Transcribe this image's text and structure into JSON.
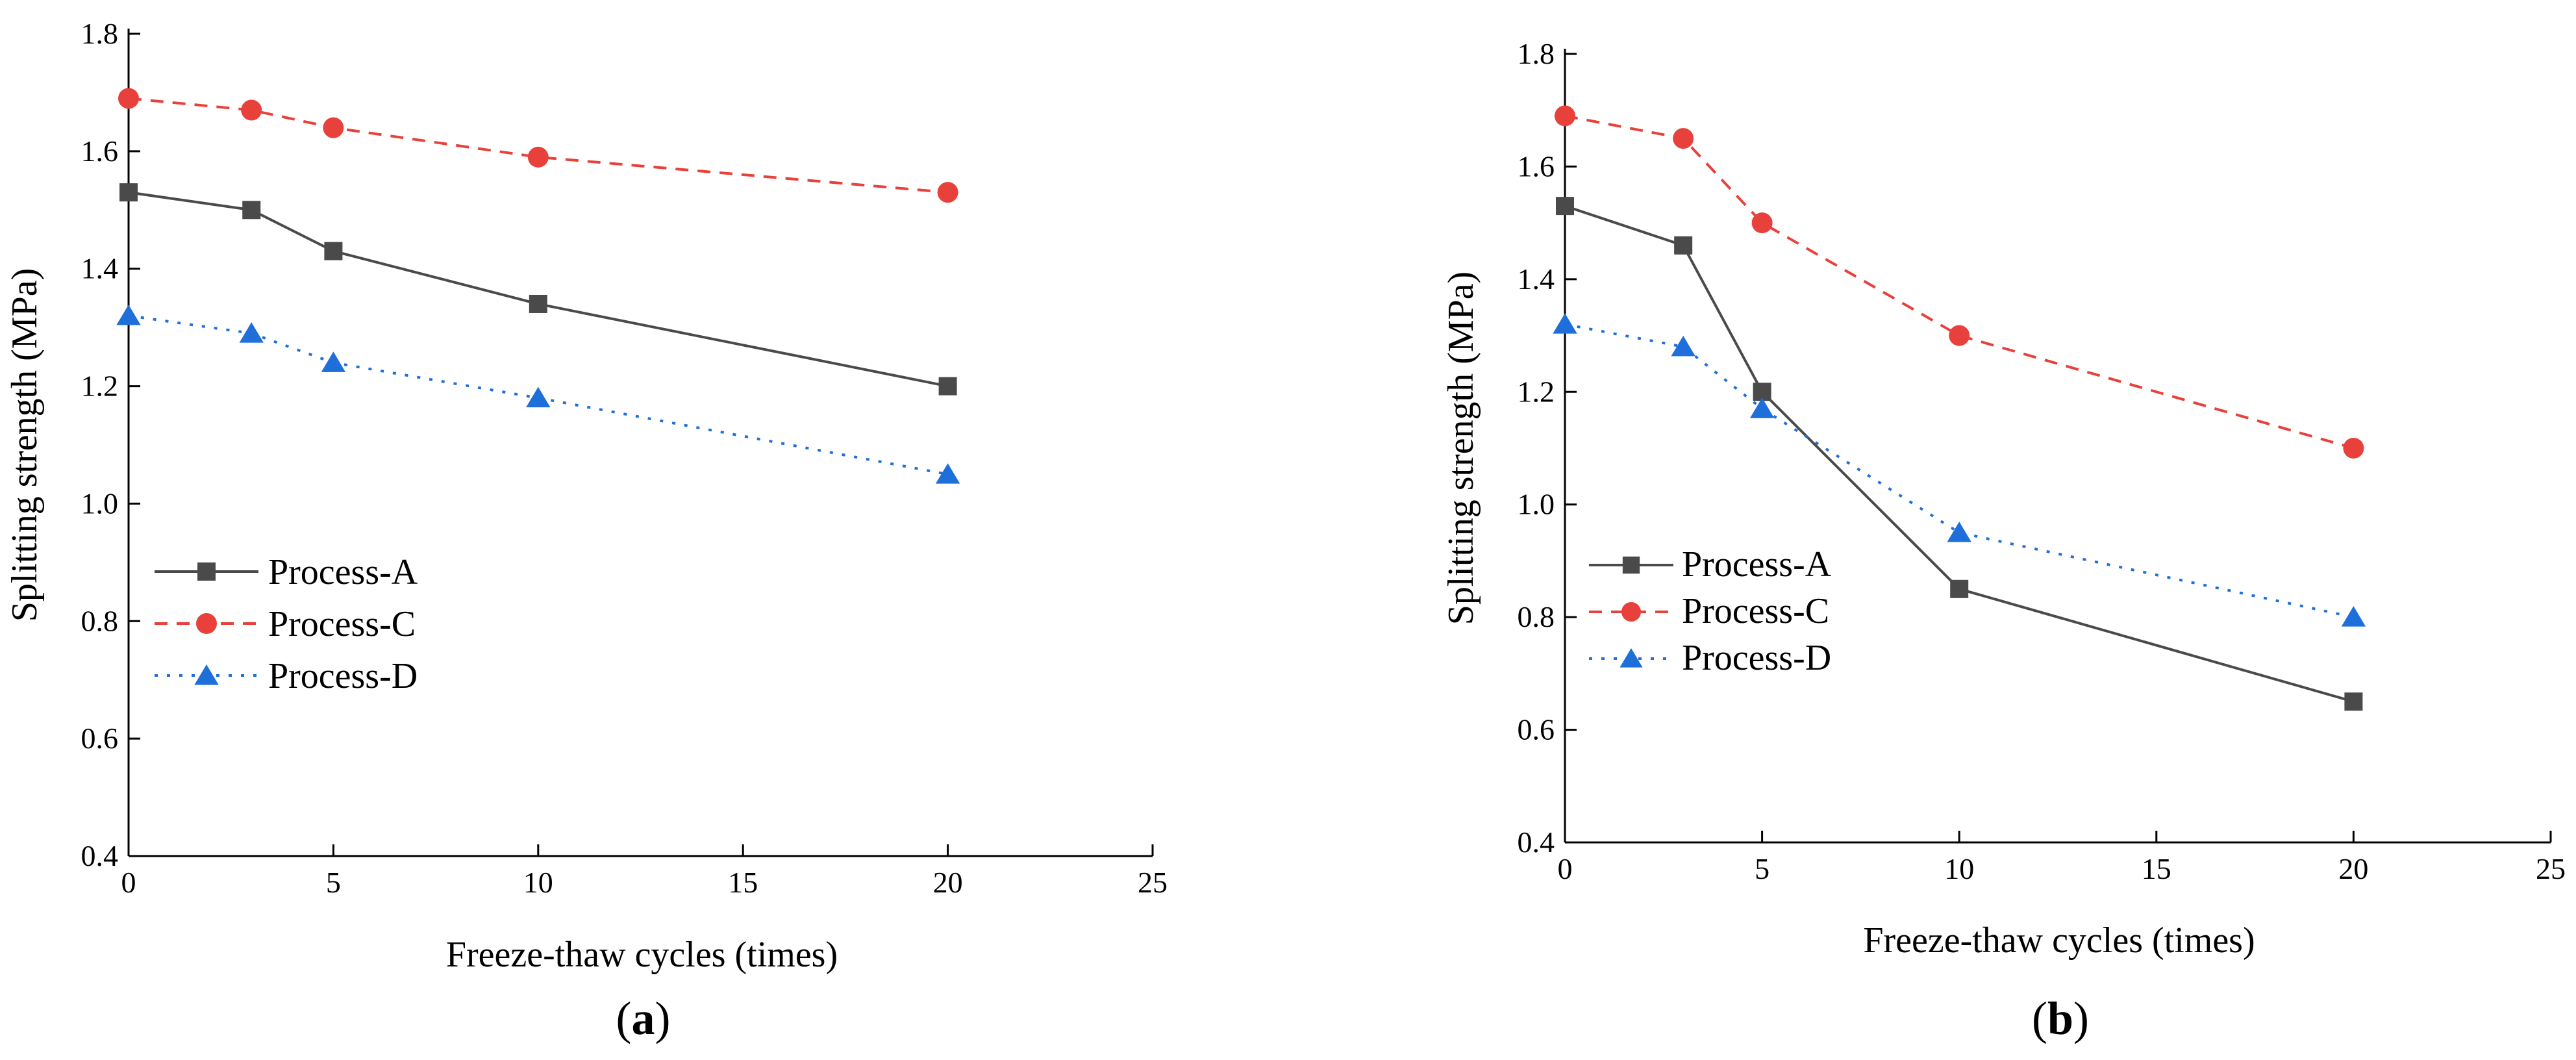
{
  "chart_data": [
    {
      "type": "line",
      "panel": "a",
      "x": [
        0,
        3,
        5,
        10,
        20
      ],
      "xlabel": "Freeze-thaw cycles (times)",
      "ylabel": "Splitting strength (MPa)",
      "xlim": [
        0,
        25
      ],
      "ylim": [
        0.4,
        1.8
      ],
      "xticks": [
        0,
        5,
        10,
        15,
        20,
        25
      ],
      "yticks": [
        0.4,
        0.6,
        0.8,
        1.0,
        1.2,
        1.4,
        1.6,
        1.8
      ],
      "grid": false,
      "legend_position": "center-left",
      "series": [
        {
          "name": "Process-A",
          "values": [
            1.53,
            1.5,
            1.43,
            1.34,
            1.2
          ],
          "color": "#4a4a4a",
          "marker": "square",
          "line": "solid"
        },
        {
          "name": "Process-C",
          "values": [
            1.69,
            1.67,
            1.64,
            1.59,
            1.53
          ],
          "color": "#e8403a",
          "marker": "circle",
          "line": "dashed"
        },
        {
          "name": "Process-D",
          "values": [
            1.32,
            1.29,
            1.24,
            1.18,
            1.05
          ],
          "color": "#1e6fd9",
          "marker": "triangle",
          "line": "dotted"
        }
      ],
      "caption": {
        "open": "(",
        "letter": "a",
        "close": ")"
      }
    },
    {
      "type": "line",
      "panel": "b",
      "x": [
        0,
        3,
        5,
        10,
        20
      ],
      "xlabel": "Freeze-thaw cycles (times)",
      "ylabel": "Splitting strength (MPa)",
      "xlim": [
        0,
        25
      ],
      "ylim": [
        0.4,
        1.8
      ],
      "xticks": [
        0,
        5,
        10,
        15,
        20,
        25
      ],
      "yticks": [
        0.4,
        0.6,
        0.8,
        1.0,
        1.2,
        1.4,
        1.6,
        1.8
      ],
      "grid": false,
      "legend_position": "center-left",
      "series": [
        {
          "name": "Process-A",
          "values": [
            1.53,
            1.46,
            1.2,
            0.85,
            0.65
          ],
          "color": "#4a4a4a",
          "marker": "square",
          "line": "solid"
        },
        {
          "name": "Process-C",
          "values": [
            1.69,
            1.65,
            1.5,
            1.3,
            1.1
          ],
          "color": "#e8403a",
          "marker": "circle",
          "line": "dashed"
        },
        {
          "name": "Process-D",
          "values": [
            1.32,
            1.28,
            1.17,
            0.95,
            0.8
          ],
          "color": "#1e6fd9",
          "marker": "triangle",
          "line": "dotted"
        }
      ],
      "caption": {
        "open": "(",
        "letter": "b",
        "close": ")"
      }
    }
  ]
}
